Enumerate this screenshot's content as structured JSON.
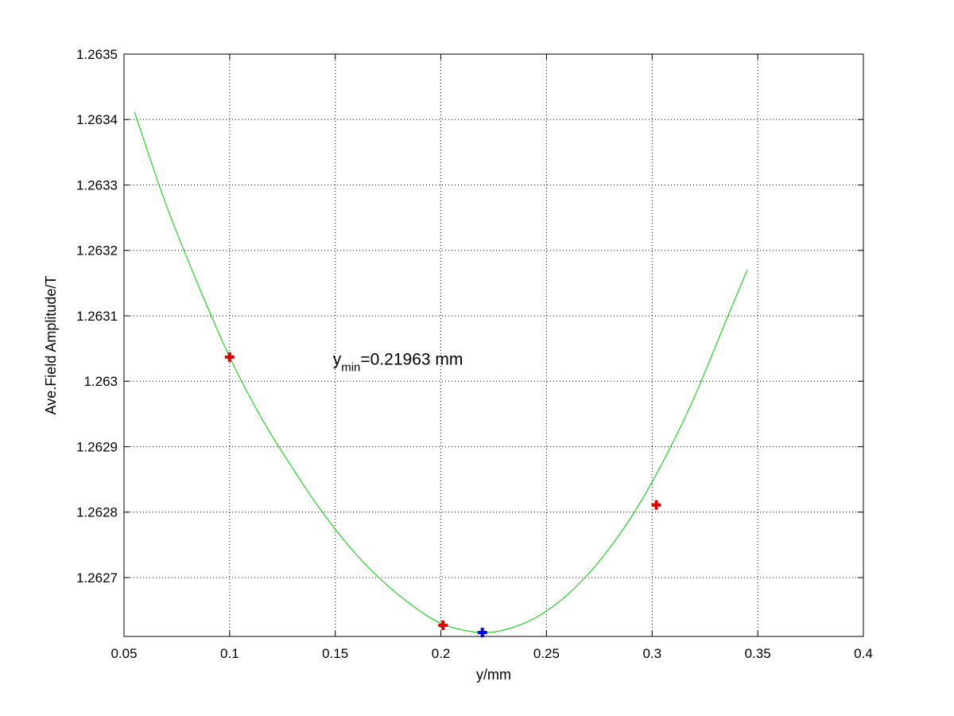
{
  "chart_data": {
    "type": "line",
    "title": "",
    "xlabel": "y/mm",
    "ylabel": "Ave.Field Amplitude/T",
    "xlim": [
      0.05,
      0.4
    ],
    "ylim": [
      1.26261,
      1.2635
    ],
    "grid": true,
    "grid_style": "dotted",
    "x_ticks": [
      0.05,
      0.1,
      0.15,
      0.2,
      0.25,
      0.3,
      0.35,
      0.4
    ],
    "x_tick_labels": [
      "0.05",
      "0.1",
      "0.15",
      "0.2",
      "0.25",
      "0.3",
      "0.35",
      "0.4"
    ],
    "y_ticks": [
      1.2627,
      1.2628,
      1.2629,
      1.263,
      1.2631,
      1.2632,
      1.2633,
      1.2634,
      1.2635
    ],
    "y_tick_labels": [
      "1.2627",
      "1.2628",
      "1.2629",
      "1.263",
      "1.2631",
      "1.2632",
      "1.2633",
      "1.2634",
      "1.2635"
    ],
    "series": [
      {
        "kind": "fit-curve",
        "color": "#00cc00",
        "x": [
          0.055,
          0.07,
          0.085,
          0.1,
          0.115,
          0.13,
          0.145,
          0.16,
          0.175,
          0.19,
          0.2,
          0.21,
          0.2196,
          0.23,
          0.245,
          0.26,
          0.275,
          0.29,
          0.305,
          0.32,
          0.335,
          0.345
        ],
        "y": [
          1.263411,
          1.263269,
          1.263148,
          1.263037,
          1.262944,
          1.262866,
          1.262795,
          1.262735,
          1.262687,
          1.262649,
          1.26263,
          1.26262,
          1.262616,
          1.26262,
          1.262639,
          1.262674,
          1.262725,
          1.262792,
          1.262876,
          1.262976,
          1.263093,
          1.26317
        ]
      },
      {
        "kind": "measured-points",
        "color": "#dd0000",
        "marker": "plus",
        "x": [
          0.1,
          0.201,
          0.302
        ],
        "y": [
          1.263037,
          1.262627,
          1.262811
        ]
      },
      {
        "kind": "minimum-point",
        "color": "#0000ee",
        "marker": "plus",
        "x": [
          0.21963
        ],
        "y": [
          1.262616
        ]
      }
    ],
    "annotation": {
      "base": "y",
      "subscript": "min",
      "text": "=0.21963 mm",
      "at": [
        0.15,
        1.263025
      ]
    }
  }
}
